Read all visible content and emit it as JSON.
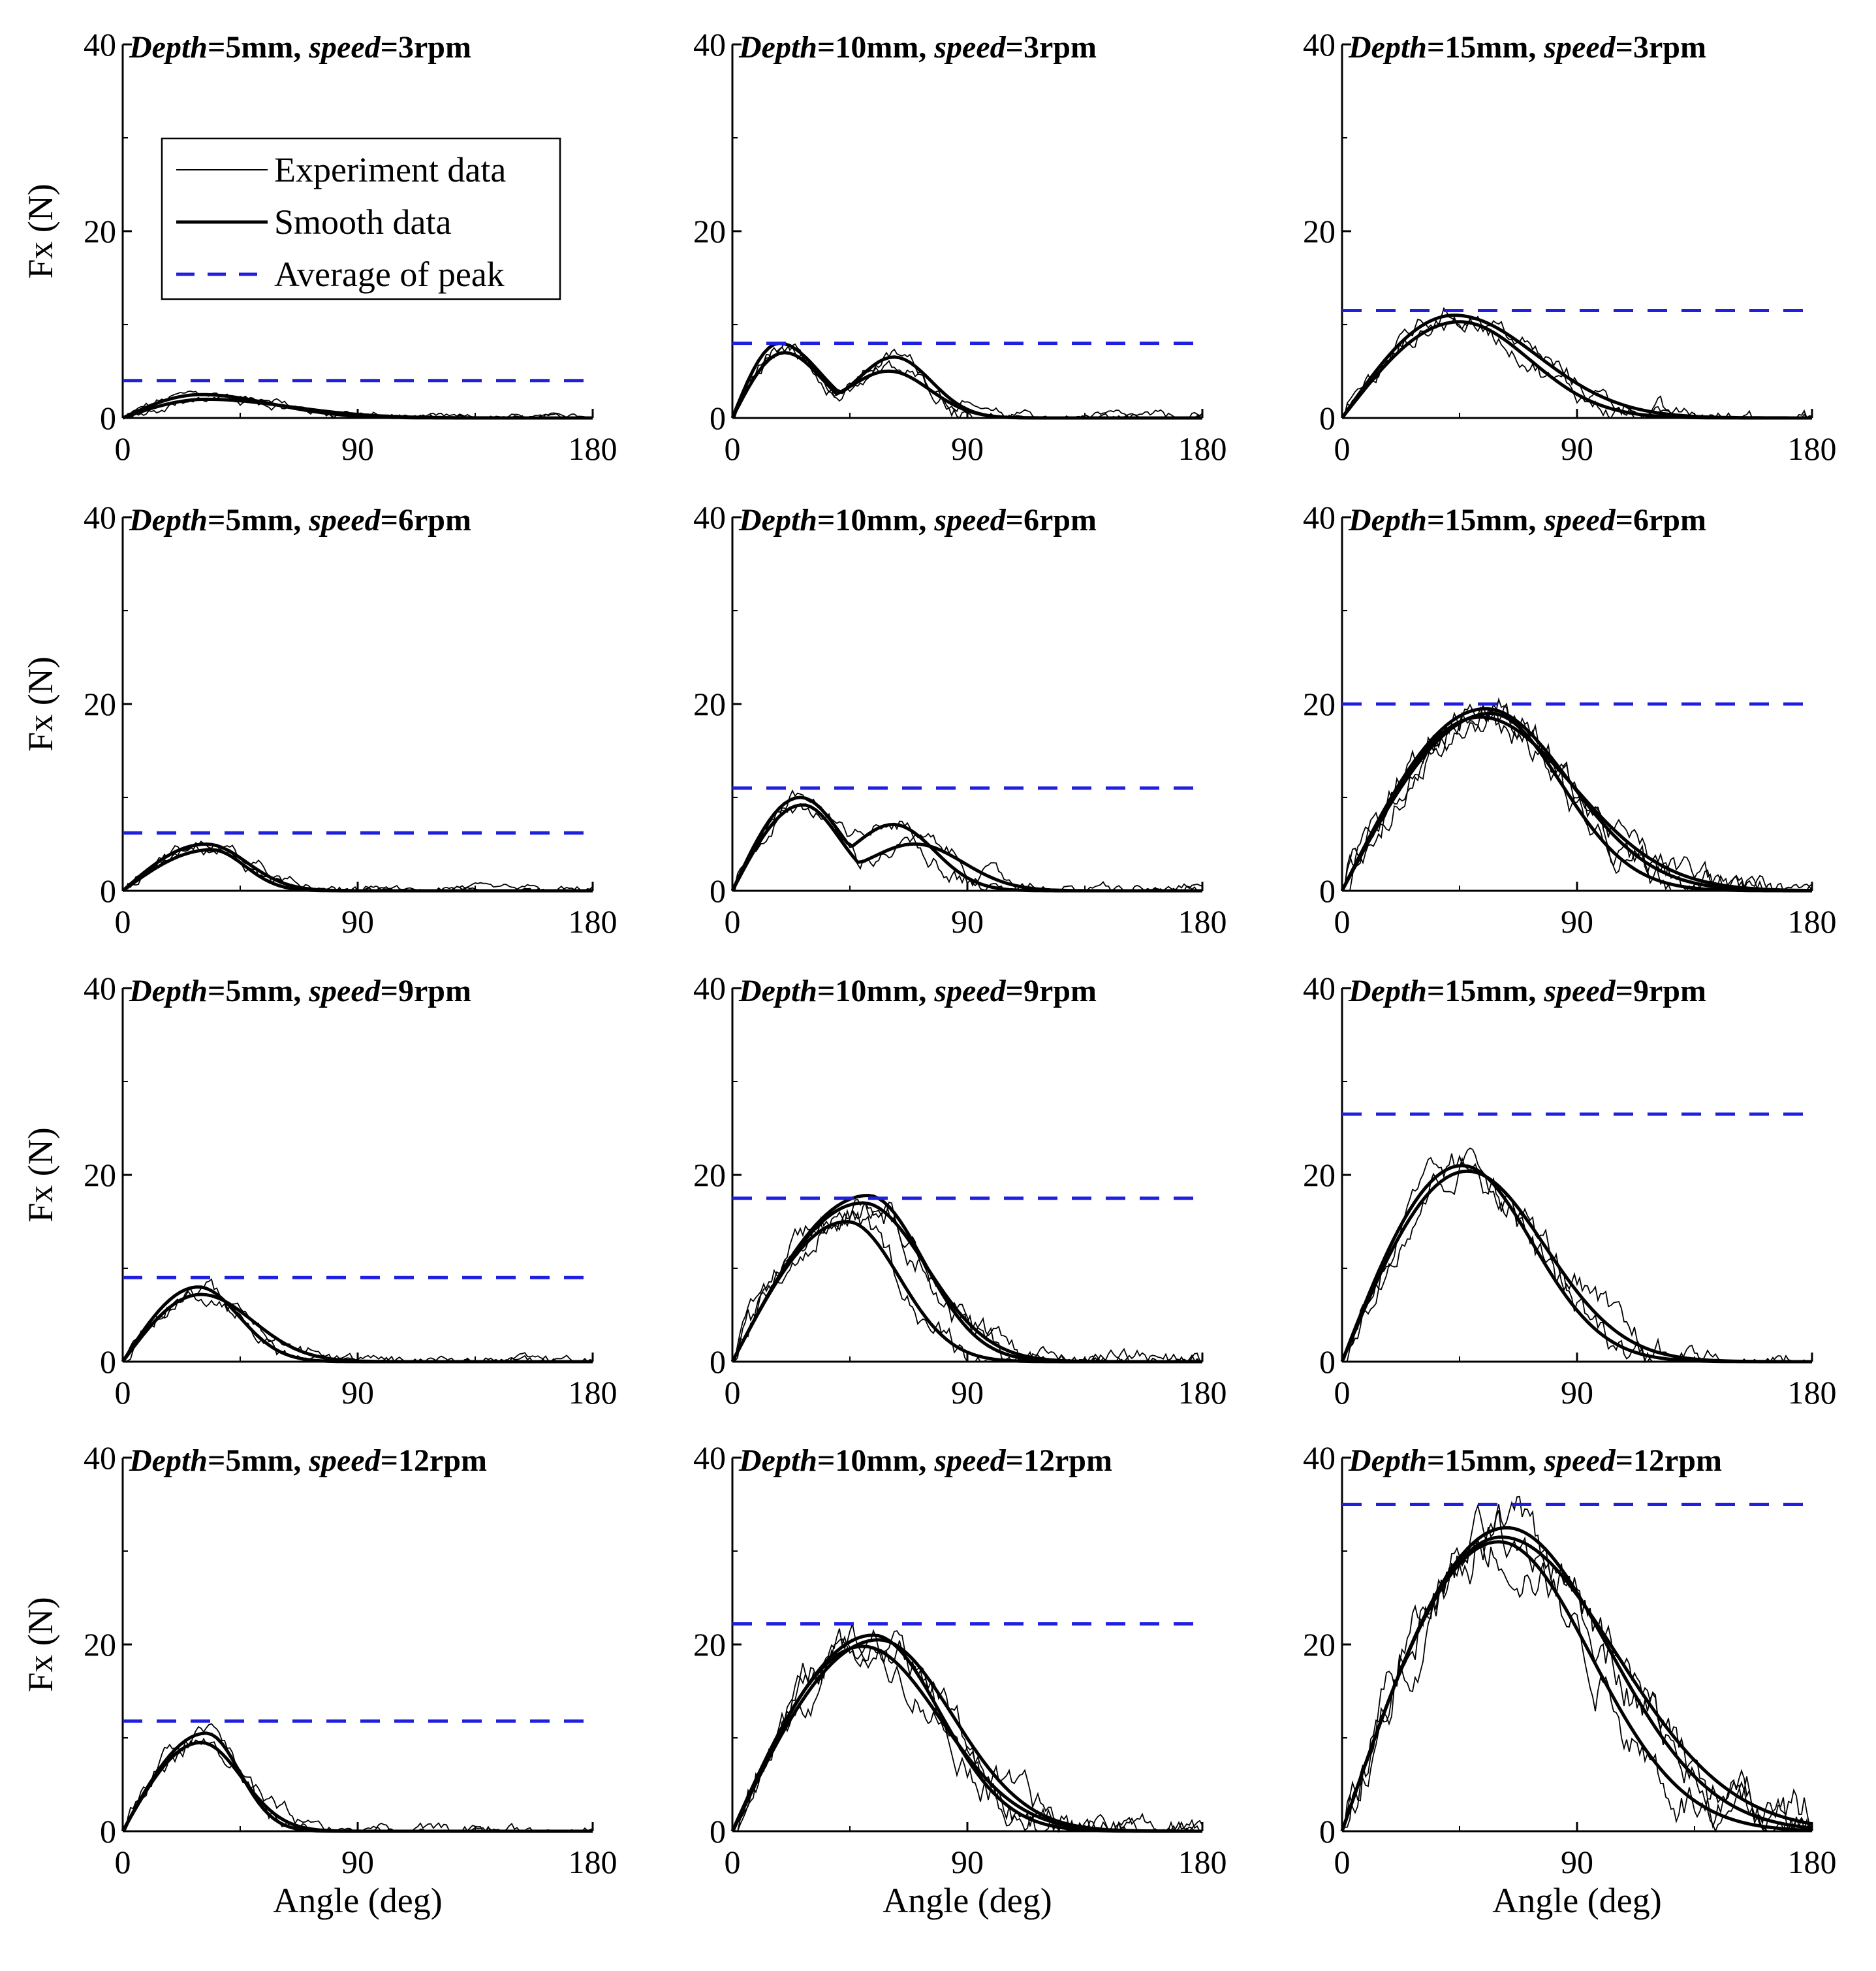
{
  "chart_data": {
    "type": "line",
    "layout": "grid 4 rows x 3 columns",
    "xlabel": "Angle (deg)",
    "ylabel": "Fx (N)",
    "xlim": [
      0,
      180
    ],
    "ylim": [
      0,
      40
    ],
    "xticks": [
      "0",
      "90",
      "180"
    ],
    "yticks": [
      "0",
      "20",
      "40"
    ],
    "legend": {
      "placement": "top-left of first panel",
      "entries": [
        {
          "label": "Experiment data",
          "style": "thin black line"
        },
        {
          "label": "Smooth data",
          "style": "thick black line"
        },
        {
          "label": "Average of peak",
          "style": "blue dashed line",
          "color": "#1f1fe0"
        }
      ]
    },
    "colors": {
      "data": "#000000",
      "average": "#1f1fe0"
    },
    "panels": [
      {
        "title_label": "Depth",
        "title_depth": "=5mm, ",
        "title_speed_label": "speed",
        "title_speed": "=3rpm",
        "average_peak": 4.0,
        "smooth": [
          {
            "peak_x": 30,
            "peak": 2.5,
            "rise": 30,
            "decay": 38
          },
          {
            "peak_x": 32,
            "peak": 2.0,
            "rise": 28,
            "decay": 45
          }
        ]
      },
      {
        "title_label": "Depth",
        "title_depth": "=10mm, ",
        "title_speed_label": "speed",
        "title_speed": "=3rpm",
        "average_peak": 8.0,
        "smooth": [
          {
            "peak_x": 18,
            "peak": 8.0,
            "rise": 12,
            "decay": 22,
            "bump_x": 62,
            "bump": 6.5,
            "bump_w": 20
          },
          {
            "peak_x": 20,
            "peak": 7.0,
            "rise": 14,
            "decay": 20,
            "bump_x": 60,
            "bump": 5.0,
            "bump_w": 22
          }
        ]
      },
      {
        "title_label": "Depth",
        "title_depth": "=15mm, ",
        "title_speed_label": "speed",
        "title_speed": "=3rpm",
        "average_peak": 11.5,
        "smooth": [
          {
            "peak_x": 43,
            "peak": 11.0,
            "rise": 30,
            "decay": 45
          },
          {
            "peak_x": 45,
            "peak": 10.3,
            "rise": 32,
            "decay": 38
          }
        ]
      },
      {
        "title_label": "Depth",
        "title_depth": "=5mm, ",
        "title_speed_label": "speed",
        "title_speed": "=6rpm",
        "average_peak": 6.2,
        "smooth": [
          {
            "peak_x": 32,
            "peak": 5.0,
            "rise": 22,
            "decay": 22
          },
          {
            "peak_x": 34,
            "peak": 4.4,
            "rise": 24,
            "decay": 18
          }
        ]
      },
      {
        "title_label": "Depth",
        "title_depth": "=10mm, ",
        "title_speed_label": "speed",
        "title_speed": "=6rpm",
        "average_peak": 11.0,
        "smooth": [
          {
            "peak_x": 26,
            "peak": 10.0,
            "rise": 16,
            "decay": 22,
            "bump_x": 62,
            "bump": 7.0,
            "bump_w": 22
          },
          {
            "peak_x": 27,
            "peak": 9.2,
            "rise": 17,
            "decay": 20,
            "bump_x": 70,
            "bump": 5.0,
            "bump_w": 26
          }
        ]
      },
      {
        "title_label": "Depth",
        "title_depth": "=15mm, ",
        "title_speed_label": "speed",
        "title_speed": "=6rpm",
        "average_peak": 20.0,
        "smooth": [
          {
            "peak_x": 55,
            "peak": 19.5,
            "rise": 42,
            "decay": 45
          },
          {
            "peak_x": 57,
            "peak": 19.0,
            "rise": 42,
            "decay": 38
          },
          {
            "peak_x": 53,
            "peak": 18.6,
            "rise": 40,
            "decay": 50
          }
        ]
      },
      {
        "title_label": "Depth",
        "title_depth": "=5mm, ",
        "title_speed_label": "speed",
        "title_speed": "=9rpm",
        "average_peak": 9.0,
        "smooth": [
          {
            "peak_x": 29,
            "peak": 8.0,
            "rise": 14,
            "decay": 22
          },
          {
            "peak_x": 30,
            "peak": 7.2,
            "rise": 14,
            "decay": 28
          }
        ]
      },
      {
        "title_label": "Depth",
        "title_depth": "=10mm, ",
        "title_speed_label": "speed",
        "title_speed": "=9rpm",
        "average_peak": 17.5,
        "smooth": [
          {
            "peak_x": 52,
            "peak": 17.8,
            "rise": 40,
            "decay": 30
          },
          {
            "peak_x": 44,
            "peak": 15.0,
            "rise": 36,
            "decay": 28
          },
          {
            "peak_x": 50,
            "peak": 17.0,
            "rise": 40,
            "decay": 34
          }
        ]
      },
      {
        "title_label": "Depth",
        "title_depth": "=15mm, ",
        "title_speed_label": "speed",
        "title_speed": "=9rpm",
        "average_peak": 26.5,
        "smooth": [
          {
            "peak_x": 46,
            "peak": 21.0,
            "rise": 32,
            "decay": 38
          },
          {
            "peak_x": 48,
            "peak": 20.4,
            "rise": 34,
            "decay": 42
          }
        ]
      },
      {
        "title_label": "Depth",
        "title_depth": "=5mm, ",
        "title_speed_label": "speed",
        "title_speed": "=12rpm",
        "average_peak": 11.8,
        "smooth": [
          {
            "peak_x": 32,
            "peak": 10.5,
            "rise": 12,
            "decay": 18
          },
          {
            "peak_x": 30,
            "peak": 9.5,
            "rise": 12,
            "decay": 22
          }
        ]
      },
      {
        "title_label": "Depth",
        "title_depth": "=10mm, ",
        "title_speed_label": "speed",
        "title_speed": "=12rpm",
        "average_peak": 22.2,
        "smooth": [
          {
            "peak_x": 54,
            "peak": 21.0,
            "rise": 36,
            "decay": 36
          },
          {
            "peak_x": 50,
            "peak": 19.8,
            "rise": 34,
            "decay": 42
          },
          {
            "peak_x": 56,
            "peak": 20.5,
            "rise": 36,
            "decay": 40
          }
        ]
      },
      {
        "title_label": "Depth",
        "title_depth": "=15mm, ",
        "title_speed_label": "speed",
        "title_speed": "=12rpm",
        "average_peak": 35.0,
        "smooth": [
          {
            "peak_x": 63,
            "peak": 32.5,
            "rise": 45,
            "decay": 55
          },
          {
            "peak_x": 61,
            "peak": 31.5,
            "rise": 44,
            "decay": 62
          },
          {
            "peak_x": 60,
            "peak": 31.0,
            "rise": 44,
            "decay": 50
          }
        ]
      }
    ]
  }
}
